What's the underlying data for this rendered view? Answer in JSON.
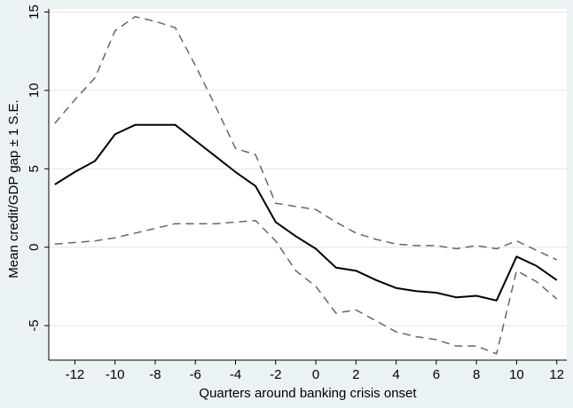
{
  "chart_data": {
    "type": "line",
    "xlabel": "Quarters around banking crisis onset",
    "ylabel": "Mean credit/GDP gap ± 1 S.E.",
    "xlim": [
      -13.3,
      12.5
    ],
    "ylim": [
      -7.2,
      15.2
    ],
    "xticks": [
      -12,
      -10,
      -8,
      -6,
      -4,
      -2,
      0,
      2,
      4,
      6,
      8,
      10,
      12
    ],
    "xtick_labels": [
      "-12",
      "-10",
      "-8",
      "-6",
      "-4",
      "-2",
      "0",
      "2",
      "4",
      "6",
      "8",
      "10",
      "12"
    ],
    "yticks": [
      -5,
      0,
      5,
      10,
      15
    ],
    "ytick_labels": [
      "-5",
      "0",
      "5",
      "10",
      "15"
    ],
    "grid": true,
    "x": [
      -13,
      -12,
      -11,
      -10,
      -9,
      -8,
      -7,
      -6,
      -5,
      -4,
      -3,
      -2,
      -1,
      0,
      1,
      2,
      3,
      4,
      5,
      6,
      7,
      8,
      9,
      10,
      11,
      12
    ],
    "series": [
      {
        "role": "mean",
        "style": "solid",
        "color": "#000000",
        "values": [
          4.0,
          4.8,
          5.5,
          7.2,
          7.8,
          7.8,
          7.8,
          6.8,
          5.8,
          4.8,
          3.9,
          1.6,
          0.7,
          -0.1,
          -1.3,
          -1.5,
          -2.1,
          -2.6,
          -2.8,
          -2.9,
          -3.2,
          -3.1,
          -3.4,
          -0.6,
          -1.2,
          -2.1
        ]
      },
      {
        "role": "upper",
        "style": "dashed",
        "color": "#666666",
        "values": [
          7.9,
          9.4,
          10.8,
          13.8,
          14.7,
          14.4,
          14.0,
          11.6,
          9.0,
          6.3,
          5.9,
          2.8,
          2.6,
          2.4,
          1.6,
          0.9,
          0.5,
          0.2,
          0.1,
          0.1,
          -0.1,
          0.1,
          -0.1,
          0.4,
          -0.2,
          -0.8
        ]
      },
      {
        "role": "lower",
        "style": "dashed",
        "color": "#666666",
        "values": [
          0.2,
          0.3,
          0.4,
          0.6,
          0.9,
          1.2,
          1.5,
          1.5,
          1.5,
          1.6,
          1.7,
          0.4,
          -1.5,
          -2.5,
          -4.2,
          -4.0,
          -4.7,
          -5.4,
          -5.7,
          -5.9,
          -6.3,
          -6.3,
          -6.8,
          -1.5,
          -2.2,
          -3.3
        ]
      }
    ]
  }
}
